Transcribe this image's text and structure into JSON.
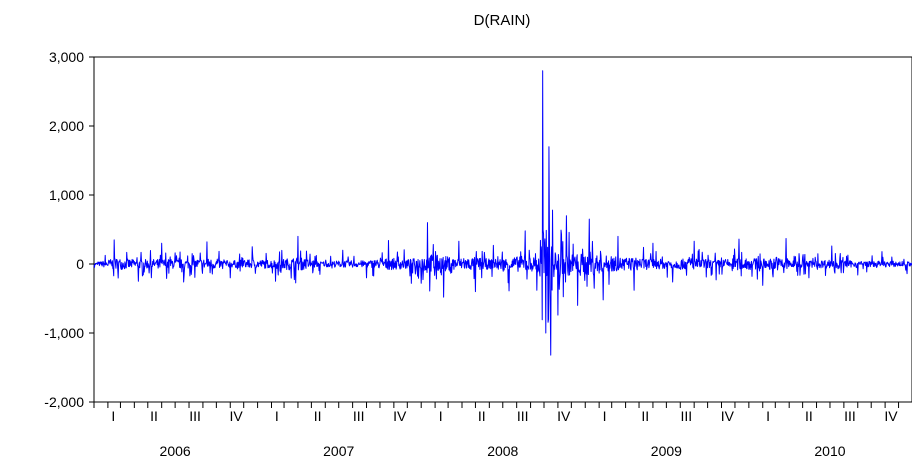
{
  "chart_data": {
    "type": "line",
    "title": "D(RAIN)",
    "xlabel": "",
    "ylabel": "",
    "ylim": [
      -2000,
      3000
    ],
    "y_ticks": [
      -2000,
      -1000,
      0,
      1000,
      2000,
      3000
    ],
    "y_tick_labels": [
      "-2,000",
      "-1,000",
      "0",
      "1,000",
      "2,000",
      "3,000"
    ],
    "x_range": [
      "2006-01-01",
      "2010-12-31"
    ],
    "frequency": "daily",
    "quarter_labels": [
      "I",
      "II",
      "III",
      "IV"
    ],
    "years": [
      "2006",
      "2007",
      "2008",
      "2009",
      "2010"
    ],
    "grid": false,
    "line_color": "#0000ff",
    "series": [
      {
        "x": [
          "2006-01-02",
          "2006-02-15",
          "2006-04-10",
          "2006-06-01",
          "2006-07-20",
          "2006-09-10",
          "2006-11-01",
          "2006-12-20",
          "2007-02-10",
          "2007-04-01",
          "2007-05-20",
          "2007-07-10",
          "2007-09-01",
          "2007-10-20",
          "2007-12-10",
          "2008-01-15",
          "2008-02-20",
          "2008-03-25",
          "2008-05-01",
          "2008-06-10",
          "2008-07-15",
          "2008-08-20",
          "2008-09-15",
          "2008-09-28",
          "2008-10-05",
          "2008-10-12",
          "2008-10-16",
          "2008-10-20",
          "2008-11-01",
          "2008-11-20",
          "2008-12-15",
          "2009-01-10",
          "2009-02-10",
          "2009-03-15",
          "2009-04-20",
          "2009-06-01",
          "2009-07-15",
          "2009-09-01",
          "2009-10-20",
          "2009-12-10",
          "2010-02-01",
          "2010-03-25",
          "2010-05-15",
          "2010-07-05",
          "2010-09-01",
          "2010-10-25",
          "2010-12-20"
        ],
        "values": [
          -50,
          350,
          -250,
          300,
          -260,
          320,
          -200,
          250,
          -250,
          400,
          -150,
          200,
          -200,
          340,
          -280,
          600,
          -480,
          330,
          -400,
          270,
          -390,
          480,
          -380,
          2800,
          -1000,
          1700,
          -1320,
          780,
          -740,
          700,
          -600,
          650,
          -520,
          400,
          -380,
          300,
          -260,
          330,
          -230,
          360,
          -310,
          370,
          -200,
          260,
          -160,
          180,
          -140
        ]
      }
    ]
  }
}
